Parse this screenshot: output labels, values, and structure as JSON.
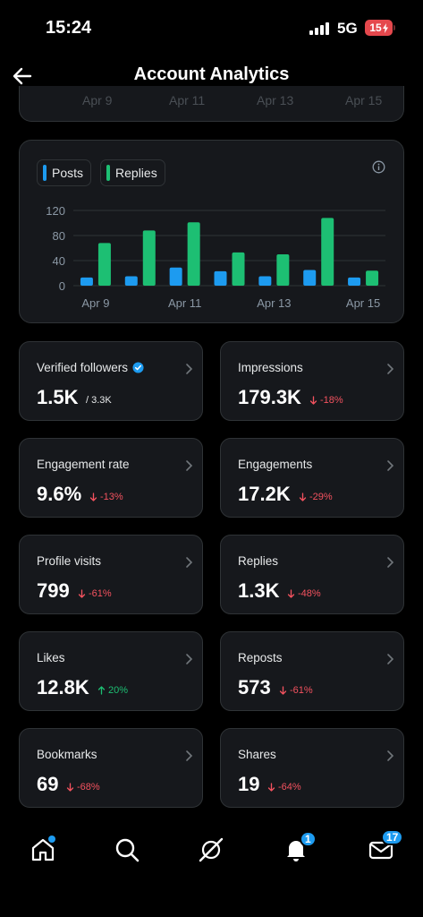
{
  "status_bar": {
    "time": "15:24",
    "network": "5G",
    "battery": "15"
  },
  "header": {
    "title": "Account Analytics"
  },
  "top_card": {
    "ticks": [
      "Apr 9",
      "Apr 11",
      "Apr 13",
      "Apr 15"
    ]
  },
  "chart_data": {
    "type": "bar",
    "categories": [
      "Apr 9",
      "Apr 10",
      "Apr 11",
      "Apr 12",
      "Apr 13",
      "Apr 14",
      "Apr 15"
    ],
    "x_tick_labels": [
      "Apr 9",
      "Apr 11",
      "Apr 13",
      "Apr 15"
    ],
    "series": [
      {
        "name": "Posts",
        "color": "#1d9bf0",
        "values": [
          13,
          15,
          29,
          23,
          15,
          25,
          13
        ]
      },
      {
        "name": "Replies",
        "color": "#1dbf73",
        "values": [
          68,
          88,
          101,
          53,
          50,
          108,
          24
        ]
      }
    ],
    "y_ticks": [
      0,
      40,
      80,
      120
    ],
    "ylim": [
      0,
      130
    ],
    "grid": true,
    "legend": "top-left"
  },
  "metrics": [
    {
      "label": "Verified followers",
      "value": "1.5K",
      "sub": "/ 3.3K",
      "trend": "neutral",
      "verified": true
    },
    {
      "label": "Impressions",
      "value": "179.3K",
      "sub": "-18%",
      "trend": "down"
    },
    {
      "label": "Engagement rate",
      "value": "9.6%",
      "sub": "-13%",
      "trend": "down"
    },
    {
      "label": "Engagements",
      "value": "17.2K",
      "sub": "-29%",
      "trend": "down"
    },
    {
      "label": "Profile visits",
      "value": "799",
      "sub": "-61%",
      "trend": "down"
    },
    {
      "label": "Replies",
      "value": "1.3K",
      "sub": "-48%",
      "trend": "down"
    },
    {
      "label": "Likes",
      "value": "12.8K",
      "sub": "20%",
      "trend": "up"
    },
    {
      "label": "Reposts",
      "value": "573",
      "sub": "-61%",
      "trend": "down"
    },
    {
      "label": "Bookmarks",
      "value": "69",
      "sub": "-68%",
      "trend": "down"
    },
    {
      "label": "Shares",
      "value": "19",
      "sub": "-64%",
      "trend": "down"
    }
  ],
  "bottom_nav": {
    "items": [
      "home-icon",
      "search-icon",
      "grok-icon",
      "bell-icon",
      "mail-icon"
    ],
    "notifications_badge": "1",
    "messages_badge": "17"
  },
  "colors": {
    "posts": "#1d9bf0",
    "replies": "#1dbf73",
    "negative": "#f4525f",
    "positive": "#1dbf73",
    "accent": "#1d9bf0"
  }
}
